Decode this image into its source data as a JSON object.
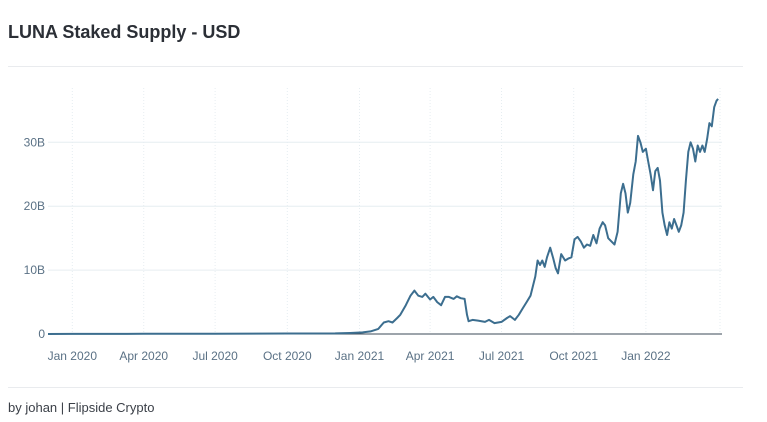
{
  "page": {
    "title": "LUNA Staked Supply - USD",
    "footer": "by johan | Flipside Crypto"
  },
  "chart_data": {
    "type": "line",
    "title": "LUNA Staked Supply - USD",
    "xlabel": "",
    "ylabel": "",
    "grid": true,
    "line_color": "#3c6e8f",
    "x_ticks": [
      {
        "date": "2020-01-01",
        "label": "Jan 2020"
      },
      {
        "date": "2020-04-01",
        "label": "Apr 2020"
      },
      {
        "date": "2020-07-01",
        "label": "Jul 2020"
      },
      {
        "date": "2020-10-01",
        "label": "Oct 2020"
      },
      {
        "date": "2021-01-01",
        "label": "Jan 2021"
      },
      {
        "date": "2021-04-01",
        "label": "Apr 2021"
      },
      {
        "date": "2021-07-01",
        "label": "Jul 2021"
      },
      {
        "date": "2021-10-01",
        "label": "Oct 2021"
      },
      {
        "date": "2022-01-01",
        "label": "Jan 2022"
      }
    ],
    "y_ticks": [
      {
        "value": 0,
        "label": "0"
      },
      {
        "value": 10,
        "label": "10B"
      },
      {
        "value": 20,
        "label": "20B"
      },
      {
        "value": 30,
        "label": "30B"
      }
    ],
    "xlim": [
      "2019-12-01",
      "2022-04-08"
    ],
    "ylim": [
      0,
      38.5
    ],
    "series": [
      {
        "points": [
          [
            "2019-12-01",
            0.0
          ],
          [
            "2020-01-01",
            0.02
          ],
          [
            "2020-04-01",
            0.03
          ],
          [
            "2020-07-01",
            0.05
          ],
          [
            "2020-10-01",
            0.08
          ],
          [
            "2020-12-01",
            0.1
          ],
          [
            "2020-12-20",
            0.15
          ],
          [
            "2021-01-05",
            0.25
          ],
          [
            "2021-01-15",
            0.4
          ],
          [
            "2021-01-25",
            0.8
          ],
          [
            "2021-02-01",
            1.8
          ],
          [
            "2021-02-07",
            2.0
          ],
          [
            "2021-02-12",
            1.8
          ],
          [
            "2021-02-18",
            2.5
          ],
          [
            "2021-02-22",
            3.0
          ],
          [
            "2021-03-01",
            4.5
          ],
          [
            "2021-03-07",
            6.0
          ],
          [
            "2021-03-12",
            6.8
          ],
          [
            "2021-03-17",
            6.0
          ],
          [
            "2021-03-22",
            5.8
          ],
          [
            "2021-03-26",
            6.3
          ],
          [
            "2021-04-01",
            5.4
          ],
          [
            "2021-04-05",
            5.8
          ],
          [
            "2021-04-10",
            5.0
          ],
          [
            "2021-04-15",
            4.5
          ],
          [
            "2021-04-20",
            5.8
          ],
          [
            "2021-04-25",
            5.8
          ],
          [
            "2021-05-01",
            5.5
          ],
          [
            "2021-05-05",
            5.9
          ],
          [
            "2021-05-10",
            5.6
          ],
          [
            "2021-05-15",
            5.5
          ],
          [
            "2021-05-18",
            3.0
          ],
          [
            "2021-05-20",
            2.0
          ],
          [
            "2021-05-25",
            2.2
          ],
          [
            "2021-06-01",
            2.1
          ],
          [
            "2021-06-10",
            1.9
          ],
          [
            "2021-06-15",
            2.2
          ],
          [
            "2021-06-22",
            1.7
          ],
          [
            "2021-07-01",
            1.9
          ],
          [
            "2021-07-08",
            2.5
          ],
          [
            "2021-07-12",
            2.8
          ],
          [
            "2021-07-18",
            2.2
          ],
          [
            "2021-07-23",
            3.0
          ],
          [
            "2021-07-28",
            4.0
          ],
          [
            "2021-08-02",
            5.0
          ],
          [
            "2021-08-07",
            6.0
          ],
          [
            "2021-08-10",
            7.5
          ],
          [
            "2021-08-13",
            9.0
          ],
          [
            "2021-08-16",
            11.5
          ],
          [
            "2021-08-19",
            10.8
          ],
          [
            "2021-08-22",
            11.5
          ],
          [
            "2021-08-25",
            10.5
          ],
          [
            "2021-08-28",
            12.0
          ],
          [
            "2021-09-01",
            13.5
          ],
          [
            "2021-09-05",
            11.8
          ],
          [
            "2021-09-08",
            10.3
          ],
          [
            "2021-09-11",
            9.5
          ],
          [
            "2021-09-15",
            12.5
          ],
          [
            "2021-09-20",
            11.5
          ],
          [
            "2021-09-24",
            11.8
          ],
          [
            "2021-09-28",
            12.0
          ],
          [
            "2021-10-02",
            14.8
          ],
          [
            "2021-10-06",
            15.2
          ],
          [
            "2021-10-10",
            14.5
          ],
          [
            "2021-10-14",
            13.5
          ],
          [
            "2021-10-18",
            14.0
          ],
          [
            "2021-10-22",
            13.8
          ],
          [
            "2021-10-26",
            15.5
          ],
          [
            "2021-10-30",
            14.2
          ],
          [
            "2021-11-03",
            16.5
          ],
          [
            "2021-11-07",
            17.5
          ],
          [
            "2021-11-10",
            17.0
          ],
          [
            "2021-11-14",
            15.0
          ],
          [
            "2021-11-18",
            14.5
          ],
          [
            "2021-11-22",
            14.0
          ],
          [
            "2021-11-26",
            16.0
          ],
          [
            "2021-11-30",
            22.0
          ],
          [
            "2021-12-03",
            23.5
          ],
          [
            "2021-12-06",
            22.0
          ],
          [
            "2021-12-09",
            19.0
          ],
          [
            "2021-12-12",
            20.5
          ],
          [
            "2021-12-16",
            25.0
          ],
          [
            "2021-12-19",
            27.0
          ],
          [
            "2021-12-22",
            31.0
          ],
          [
            "2021-12-25",
            30.0
          ],
          [
            "2021-12-28",
            28.5
          ],
          [
            "2022-01-01",
            29.0
          ],
          [
            "2022-01-04",
            27.0
          ],
          [
            "2022-01-07",
            25.0
          ],
          [
            "2022-01-10",
            22.5
          ],
          [
            "2022-01-13",
            25.5
          ],
          [
            "2022-01-16",
            26.0
          ],
          [
            "2022-01-19",
            24.0
          ],
          [
            "2022-01-22",
            19.0
          ],
          [
            "2022-01-25",
            17.0
          ],
          [
            "2022-01-28",
            15.5
          ],
          [
            "2022-01-31",
            17.5
          ],
          [
            "2022-02-03",
            16.5
          ],
          [
            "2022-02-06",
            18.0
          ],
          [
            "2022-02-09",
            17.0
          ],
          [
            "2022-02-12",
            16.0
          ],
          [
            "2022-02-15",
            17.0
          ],
          [
            "2022-02-18",
            19.0
          ],
          [
            "2022-02-21",
            24.0
          ],
          [
            "2022-02-24",
            28.5
          ],
          [
            "2022-02-27",
            30.0
          ],
          [
            "2022-03-02",
            29.0
          ],
          [
            "2022-03-05",
            27.0
          ],
          [
            "2022-03-08",
            29.5
          ],
          [
            "2022-03-11",
            28.5
          ],
          [
            "2022-03-14",
            29.5
          ],
          [
            "2022-03-17",
            28.5
          ],
          [
            "2022-03-20",
            30.5
          ],
          [
            "2022-03-23",
            33.0
          ],
          [
            "2022-03-26",
            32.5
          ],
          [
            "2022-03-29",
            35.5
          ],
          [
            "2022-04-01",
            36.5
          ],
          [
            "2022-04-03",
            36.8
          ]
        ]
      }
    ]
  }
}
